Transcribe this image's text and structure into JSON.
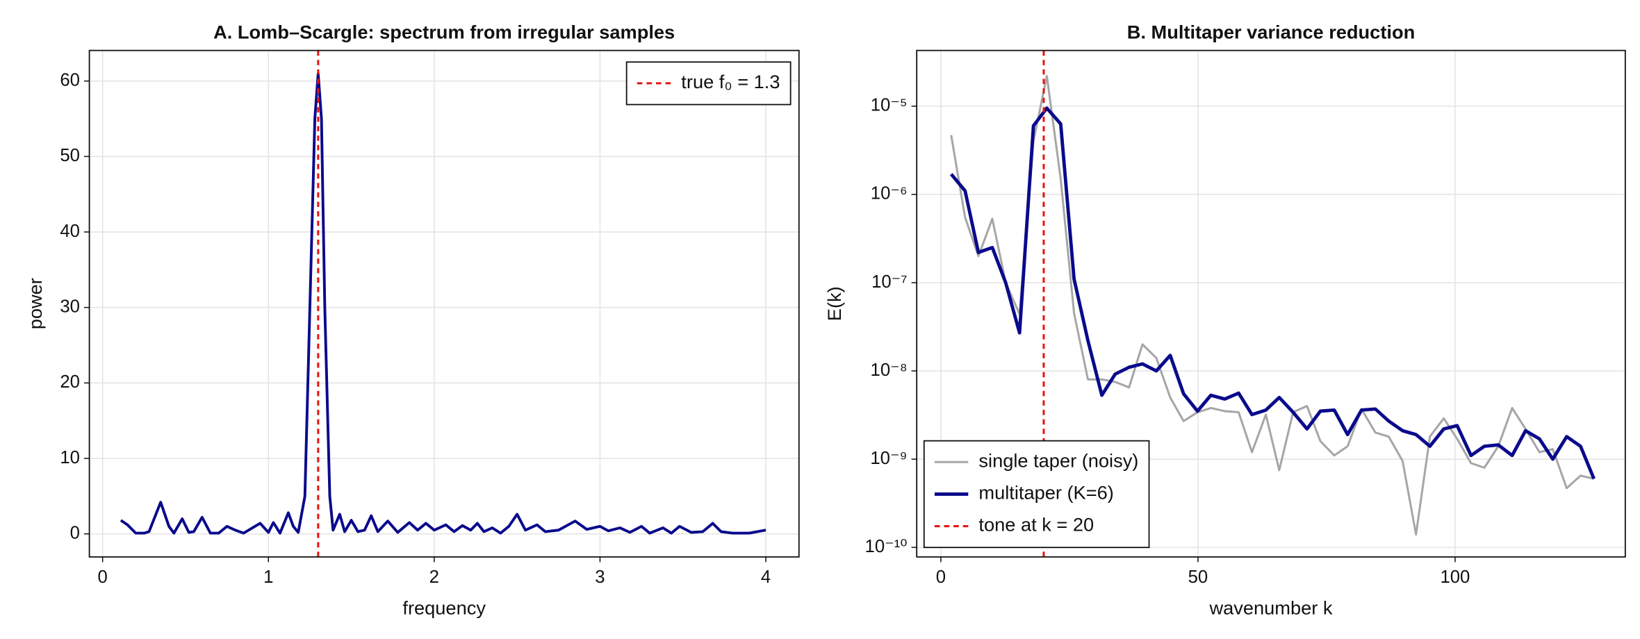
{
  "chart_data": [
    {
      "type": "line",
      "title": "A. Lomb–Scargle: spectrum from irregular samples",
      "xlabel": "frequency",
      "ylabel": "power",
      "xlim": [
        -0.08,
        4.2
      ],
      "ylim": [
        -3.05,
        64.05
      ],
      "xticks": [
        0,
        1,
        2,
        3,
        4
      ],
      "yticks": [
        0,
        10,
        20,
        30,
        40,
        50,
        60
      ],
      "grid": true,
      "legend": "upper right",
      "x": [
        0.11,
        0.15,
        0.2,
        0.25,
        0.28,
        0.35,
        0.4,
        0.43,
        0.48,
        0.52,
        0.55,
        0.6,
        0.65,
        0.7,
        0.75,
        0.8,
        0.85,
        0.95,
        1.0,
        1.03,
        1.07,
        1.12,
        1.15,
        1.18,
        1.22,
        1.25,
        1.28,
        1.3,
        1.32,
        1.34,
        1.37,
        1.39,
        1.43,
        1.46,
        1.5,
        1.54,
        1.58,
        1.62,
        1.66,
        1.72,
        1.78,
        1.85,
        1.9,
        1.95,
        2.0,
        2.07,
        2.12,
        2.17,
        2.22,
        2.26,
        2.3,
        2.35,
        2.4,
        2.45,
        2.5,
        2.55,
        2.62,
        2.67,
        2.75,
        2.85,
        2.92,
        3.0,
        3.05,
        3.12,
        3.18,
        3.25,
        3.3,
        3.38,
        3.43,
        3.48,
        3.55,
        3.62,
        3.68,
        3.73,
        3.8,
        3.9,
        4.0
      ],
      "series": [
        {
          "color": "#0a0a8c",
          "values": [
            1.8,
            1.2,
            0.1,
            0.1,
            0.3,
            4.2,
            1,
            0.1,
            2,
            0.2,
            0.3,
            2.2,
            0.1,
            0.1,
            1,
            0.5,
            0.1,
            1.4,
            0.2,
            1.5,
            0.1,
            2.8,
            1,
            0.2,
            5,
            30,
            55,
            61,
            55,
            30,
            5,
            0.5,
            2.6,
            0.3,
            1.8,
            0.3,
            0.5,
            2.4,
            0.3,
            1.7,
            0.2,
            1.5,
            0.5,
            1.4,
            0.5,
            1.2,
            0.3,
            1.1,
            0.5,
            1.4,
            0.3,
            0.8,
            0.1,
            1,
            2.6,
            0.5,
            1.2,
            0.3,
            0.5,
            1.7,
            0.6,
            1,
            0.4,
            0.8,
            0.2,
            1,
            0.1,
            0.8,
            0.1,
            1,
            0.2,
            0.3,
            1.4,
            0.3,
            0.1,
            0.1,
            0.5
          ]
        }
      ],
      "vlines": [
        {
          "x": 1.3,
          "name": "true f₀ = 1.3",
          "color": "#e8140f"
        }
      ]
    },
    {
      "type": "line",
      "title": "B. Multitaper variance reduction",
      "xlabel": "wavenumber k",
      "ylabel": "E(k)",
      "xlim": [
        -4.7,
        133.1
      ],
      "ylim": [
        7.8e-11,
        4.28e-05
      ],
      "yscale": "log",
      "xticks": [
        0,
        50,
        100
      ],
      "yticks": [
        {
          "value": 1e-10,
          "label": "10⁻¹⁰"
        },
        {
          "value": 1e-09,
          "label": "10⁻⁹"
        },
        {
          "value": 1e-08,
          "label": "10⁻⁸"
        },
        {
          "value": 1e-07,
          "label": "10⁻⁷"
        },
        {
          "value": 1e-06,
          "label": "10⁻⁶"
        },
        {
          "value": 1e-05,
          "label": "10⁻⁵"
        }
      ],
      "grid": true,
      "legend": "lower left",
      "x": [
        2,
        4.7,
        7.3,
        10,
        12.6,
        15.3,
        18,
        20.6,
        23.3,
        25.9,
        28.6,
        31.3,
        33.9,
        36.6,
        39.2,
        41.9,
        44.6,
        47.2,
        49.9,
        52.5,
        55.2,
        57.9,
        60.5,
        63.2,
        65.8,
        68.5,
        71.2,
        73.8,
        76.5,
        79.1,
        81.8,
        84.5,
        87.1,
        89.8,
        92.4,
        95.1,
        97.8,
        100.4,
        103.1,
        105.7,
        108.4,
        111.1,
        113.7,
        116.4,
        119,
        121.7,
        124.4,
        127
      ],
      "series": [
        {
          "name": "single taper (noisy)",
          "color": "#a6a6a6",
          "width": 2,
          "values": [
            4.7e-06,
            5.5e-07,
            2e-07,
            5.3e-07,
            1e-07,
            4.4e-08,
            4e-06,
            2.2e-05,
            1.5e-06,
            4.5e-08,
            8e-09,
            8e-09,
            7.5e-09,
            6.5e-09,
            2e-08,
            1.4e-08,
            5e-09,
            2.7e-09,
            3.4e-09,
            3.8e-09,
            3.5e-09,
            3.4e-09,
            1.2e-09,
            3.2e-09,
            7.5e-10,
            3.4e-09,
            4e-09,
            1.6e-09,
            1.1e-09,
            1.4e-09,
            3.7e-09,
            2e-09,
            1.8e-09,
            9.5e-10,
            1.4e-10,
            1.8e-09,
            2.9e-09,
            1.7e-09,
            9e-10,
            8e-10,
            1.4e-09,
            3.8e-09,
            2.2e-09,
            1.2e-09,
            1.3e-09,
            4.7e-10,
            6.5e-10,
            6e-10
          ]
        },
        {
          "name": "multitaper (K=6)",
          "color": "#0a0a8c",
          "width": 3.2,
          "values": [
            1.7e-06,
            1.1e-06,
            2.2e-07,
            2.5e-07,
            1e-07,
            2.7e-08,
            6e-06,
            9.5e-06,
            6.3e-06,
            1.1e-07,
            2.2e-08,
            5.3e-09,
            9.2e-09,
            1.1e-08,
            1.2e-08,
            1e-08,
            1.5e-08,
            5.5e-09,
            3.5e-09,
            5.3e-09,
            4.8e-09,
            5.6e-09,
            3.2e-09,
            3.6e-09,
            5e-09,
            3.4e-09,
            2.2e-09,
            3.5e-09,
            3.6e-09,
            1.9e-09,
            3.6e-09,
            3.7e-09,
            2.7e-09,
            2.1e-09,
            1.9e-09,
            1.4e-09,
            2.2e-09,
            2.4e-09,
            1.1e-09,
            1.4e-09,
            1.45e-09,
            1.1e-09,
            2.1e-09,
            1.7e-09,
            1e-09,
            1.8e-09,
            1.4e-09,
            6e-10
          ]
        }
      ],
      "vlines": [
        {
          "x": 20,
          "name": "tone at k = 20",
          "color": "#e8140f"
        }
      ]
    }
  ]
}
